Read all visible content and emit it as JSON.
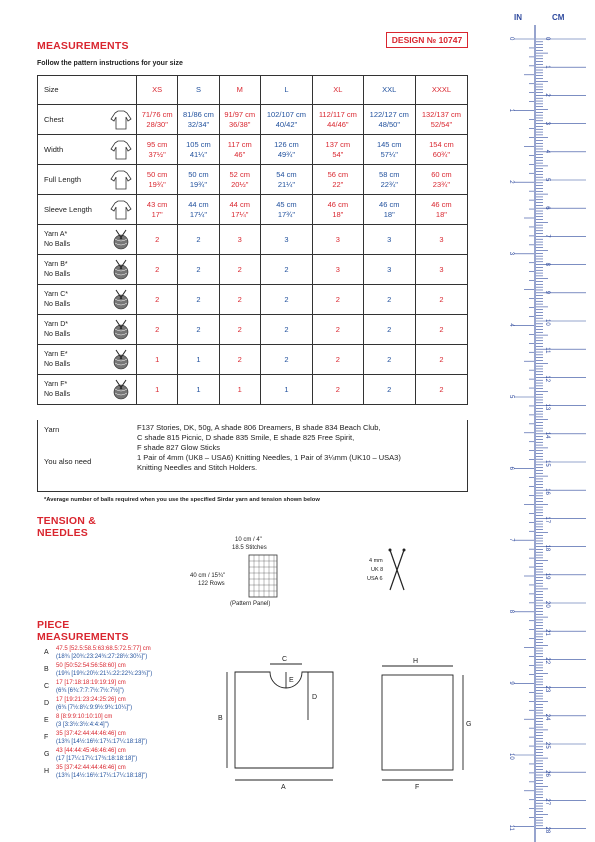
{
  "header": {
    "title": "MEASUREMENTS",
    "design": "DESIGN № 10747",
    "intro": "Follow the pattern instructions for your size"
  },
  "table": {
    "size_label": "Size",
    "sizes": [
      "XS",
      "S",
      "M",
      "L",
      "XL",
      "XXL",
      "XXXL"
    ],
    "rows": [
      {
        "label": "Chest",
        "icon": "chest-icon",
        "vals": [
          [
            "71/76 cm",
            "28/30\""
          ],
          [
            "81/86 cm",
            "32/34\""
          ],
          [
            "91/97 cm",
            "36/38\""
          ],
          [
            "102/107 cm",
            "40/42\""
          ],
          [
            "112/117 cm",
            "44/46\""
          ],
          [
            "122/127 cm",
            "48/50\""
          ],
          [
            "132/137 cm",
            "52/54\""
          ]
        ]
      },
      {
        "label": "Width",
        "icon": "width-icon",
        "vals": [
          [
            "95 cm",
            "37½\""
          ],
          [
            "105 cm",
            "41¼\""
          ],
          [
            "117 cm",
            "46\""
          ],
          [
            "126 cm",
            "49¾\""
          ],
          [
            "137 cm",
            "54\""
          ],
          [
            "145 cm",
            "57¼\""
          ],
          [
            "154 cm",
            "60¾\""
          ]
        ]
      },
      {
        "label": "Full Length",
        "icon": "length-icon",
        "vals": [
          [
            "50 cm",
            "19¾\""
          ],
          [
            "50 cm",
            "19¾\""
          ],
          [
            "52 cm",
            "20½\""
          ],
          [
            "54 cm",
            "21¼\""
          ],
          [
            "56 cm",
            "22\""
          ],
          [
            "58 cm",
            "22¾\""
          ],
          [
            "60 cm",
            "23¾\""
          ]
        ]
      },
      {
        "label": "Sleeve Length",
        "icon": "sleeve-icon",
        "vals": [
          [
            "43 cm",
            "17\""
          ],
          [
            "44 cm",
            "17¼\""
          ],
          [
            "44 cm",
            "17¼\""
          ],
          [
            "45 cm",
            "17¾\""
          ],
          [
            "46 cm",
            "18\""
          ],
          [
            "46 cm",
            "18\""
          ],
          [
            "46 cm",
            "18\""
          ]
        ]
      }
    ],
    "yarns": [
      {
        "l1": "Yarn A*",
        "l2": "No Balls",
        "vals": [
          "2",
          "2",
          "3",
          "3",
          "3",
          "3",
          "3"
        ]
      },
      {
        "l1": "Yarn B*",
        "l2": "No Balls",
        "vals": [
          "2",
          "2",
          "2",
          "2",
          "3",
          "3",
          "3"
        ]
      },
      {
        "l1": "Yarn C*",
        "l2": "No Balls",
        "vals": [
          "2",
          "2",
          "2",
          "2",
          "2",
          "2",
          "2"
        ]
      },
      {
        "l1": "Yarn D*",
        "l2": "No Balls",
        "vals": [
          "2",
          "2",
          "2",
          "2",
          "2",
          "2",
          "2"
        ]
      },
      {
        "l1": "Yarn E*",
        "l2": "No Balls",
        "vals": [
          "1",
          "1",
          "2",
          "2",
          "2",
          "2",
          "2"
        ]
      },
      {
        "l1": "Yarn F*",
        "l2": "No Balls",
        "vals": [
          "1",
          "1",
          "1",
          "1",
          "2",
          "2",
          "2"
        ]
      }
    ],
    "yarn_label": "Yarn",
    "yarn_text1": "F137 Stories, DK, 50g, A shade 806 Dreamers, B shade 834 Beach Club,",
    "yarn_text2": "C shade 815 Picnic, D shade 835 Smile, E shade 825 Free Spirit,",
    "yarn_text3": "F shade 827 Glow Sticks",
    "need_label": "You also need",
    "need_text1": "1 Pair of 4mm (UK8 – USA6) Knitting Needles, 1 Pair of 3¼mm (UK10 – USA3)",
    "need_text2": "Knitting Needles and Stitch Holders."
  },
  "note": "*Average number of balls required when you use the specified Sirdar yarn and tension shown below",
  "tension": {
    "title1": "TENSION &",
    "title2": "NEEDLES",
    "top": "10 cm / 4\"",
    "stitches": "18.5 Stitches",
    "side1": "40 cm / 15¾\"",
    "side2": "122 Rows",
    "panel": "(Pattern Panel)",
    "n1": "4 mm",
    "n2": "UK 8",
    "n3": "USA 6"
  },
  "piece": {
    "title1": "PIECE",
    "title2": "MEASUREMENTS",
    "items": [
      {
        "k": "A",
        "a": "47.5 [52.5:58.5:63:68.5:72.5:77] cm",
        "b": "(18¾ [20¾:23:24¾:27:28½:30¼]\")"
      },
      {
        "k": "B",
        "a": "50 [50:52:54:56:58:60] cm",
        "b": "(19¾ [19¾:20½:21¼:22:22¾:23¾]\")"
      },
      {
        "k": "C",
        "a": "17 [17:18:18:19:19:19] cm",
        "b": "(6¾ [6¾:7:7:7½:7½:7½]\")"
      },
      {
        "k": "D",
        "a": "17 [19:21:23:24:25:26] cm",
        "b": "(6¾ [7½:8¼:9:9½:9¾:10¼]\")"
      },
      {
        "k": "E",
        "a": "8 [8:9:9:10:10:10] cm",
        "b": "(3 [3:3½:3½:4:4:4]\")"
      },
      {
        "k": "F",
        "a": "35 [37:42:44:44:46:46] cm",
        "b": "(13¾ [14½:16½:17¼:17¼:18:18]\")"
      },
      {
        "k": "G",
        "a": "43 [44:44:45:46:46:46] cm",
        "b": "(17 [17¼:17¼:17¾:18:18:18]\")"
      },
      {
        "k": "H",
        "a": "35 [37:42:44:44:46:46] cm",
        "b": "(13¾ [14½:16½:17¼:17¼:18:18]\")"
      }
    ],
    "diag": {
      "a": "A",
      "b": "B",
      "c": "C",
      "d": "D",
      "e": "E",
      "f": "F",
      "g": "G",
      "h": "H"
    }
  },
  "ruler": {
    "in_label": "IN",
    "cm_label": "CM",
    "inches": [
      "0",
      "1",
      "2",
      "3",
      "4",
      "5",
      "6",
      "7",
      "8",
      "9",
      "10",
      "11"
    ],
    "cms": [
      "0",
      "1",
      "2",
      "3",
      "4",
      "5",
      "6",
      "7",
      "8",
      "9",
      "10",
      "11",
      "12",
      "13",
      "14",
      "15",
      "16",
      "17",
      "18",
      "19",
      "20",
      "21",
      "22",
      "23",
      "24",
      "25",
      "26",
      "27",
      "28"
    ]
  },
  "colors": {
    "red": "#d9262f",
    "blue": "#1f4f9c",
    "ruler": "#2f4a9e"
  }
}
